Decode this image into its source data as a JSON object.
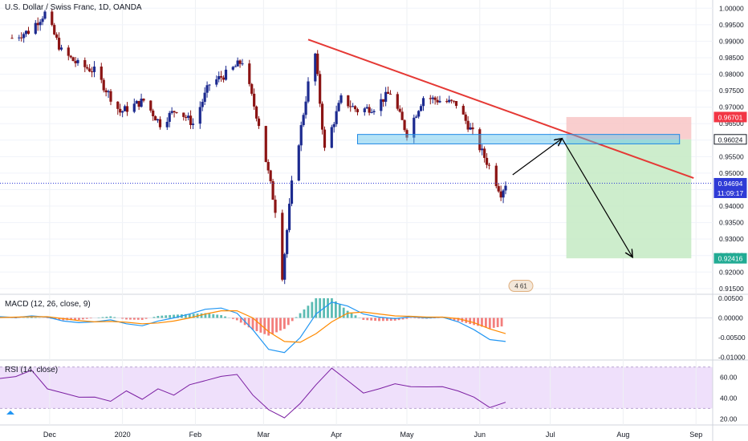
{
  "header": {
    "symbol_title": "U.S. Dollar / Swiss Franc, 1D, OANDA"
  },
  "indicators": {
    "macd_label": "MACD (12, 26, close, 9)",
    "rsi_label": "RSI (14, close)"
  },
  "badge_text": "4 61",
  "colors": {
    "up_candle": "#1c2a8f",
    "down_candle": "#8b1414",
    "trendline": "#e53935",
    "support_zone": "#5bc0eb",
    "stop_zone": "#f8c6c6",
    "target_zone": "#c8ebc6",
    "price_line": "#2f3bd6",
    "macd_line": "#2196f3",
    "signal_line": "#ff8a00",
    "rsi_line": "#7b1fa2",
    "rsi_band": "#efe0fb"
  },
  "chart_data": [
    {
      "type": "candlestick",
      "title": "U.S. Dollar / Swiss Franc, 1D, OANDA",
      "x_ticks": [
        "Dec",
        "2020",
        "Feb",
        "Mar",
        "Apr",
        "May",
        "Jun",
        "Jul",
        "Aug",
        "Sep"
      ],
      "y_ticks": [
        "1.00000",
        "0.99500",
        "0.99000",
        "0.98500",
        "0.98000",
        "0.97500",
        "0.97000",
        "0.96500",
        "0.96000",
        "0.95500",
        "0.95000",
        "0.94500",
        "0.94000",
        "0.93500",
        "0.93000",
        "0.92500",
        "0.92000",
        "0.91500"
      ],
      "ylim": [
        0.9135,
        1.0025
      ],
      "price_tags": [
        {
          "value": 0.96701,
          "label": "0.96701",
          "kind": "stop"
        },
        {
          "value": 0.96024,
          "label": "0.96024",
          "kind": "entry"
        },
        {
          "value": 0.94694,
          "label": "0.94694",
          "kind": "last"
        },
        {
          "value": 0.94544,
          "label": "11:09:17",
          "kind": "countdown"
        },
        {
          "value": 0.92416,
          "label": "0.92416",
          "kind": "target"
        }
      ],
      "approx_close_path": [
        [
          "2019-11-15",
          0.991
        ],
        [
          "2019-11-22",
          0.993
        ],
        [
          "2019-11-29",
          0.9985
        ],
        [
          "2019-12-06",
          0.987
        ],
        [
          "2019-12-13",
          0.983
        ],
        [
          "2019-12-20",
          0.981
        ],
        [
          "2019-12-31",
          0.9685
        ],
        [
          "2020-01-10",
          0.972
        ],
        [
          "2020-01-17",
          0.965
        ],
        [
          "2020-01-24",
          0.9695
        ],
        [
          "2020-01-31",
          0.965
        ],
        [
          "2020-02-07",
          0.977
        ],
        [
          "2020-02-14",
          0.98
        ],
        [
          "2020-02-21",
          0.984
        ],
        [
          "2020-02-28",
          0.965
        ],
        [
          "2020-03-06",
          0.939
        ],
        [
          "2020-03-09",
          0.919
        ],
        [
          "2020-03-13",
          0.9465
        ],
        [
          "2020-03-20",
          0.977
        ],
        [
          "2020-03-23",
          0.986
        ],
        [
          "2020-03-27",
          0.957
        ],
        [
          "2020-04-03",
          0.9725
        ],
        [
          "2020-04-10",
          0.969
        ],
        [
          "2020-04-17",
          0.97
        ],
        [
          "2020-04-24",
          0.9745
        ],
        [
          "2020-05-01",
          0.962
        ],
        [
          "2020-05-08",
          0.973
        ],
        [
          "2020-05-15",
          0.972
        ],
        [
          "2020-05-22",
          0.971
        ],
        [
          "2020-05-29",
          0.962
        ],
        [
          "2020-06-05",
          0.952
        ],
        [
          "2020-06-10",
          0.944
        ],
        [
          "2020-06-12",
          0.9469
        ]
      ],
      "annotations": {
        "trendline": [
          [
            "2020-03-20",
            0.9905
          ],
          [
            "2020-08-31",
            0.9485
          ]
        ],
        "support_zone": {
          "from": "2020-04-10",
          "to": "2020-08-25",
          "low": 0.9596,
          "high": 0.961
        },
        "projection_path": [
          [
            "2020-06-15",
            0.9495
          ],
          [
            "2020-07-06",
            0.9605
          ],
          [
            "2020-08-05",
            0.9245
          ]
        ],
        "position": {
          "entry": 0.96024,
          "stop": 0.96701,
          "target": 0.92416,
          "from": "2020-07-01",
          "to": "2020-08-30"
        }
      }
    },
    {
      "type": "line",
      "title": "MACD (12, 26, close, 9)",
      "y_ticks": [
        "0.00500",
        "0.00000",
        "-0.00500",
        "-0.01000"
      ],
      "ylim": [
        -0.0105,
        0.0058
      ],
      "series": [
        {
          "name": "MACD",
          "values": [
            0.0003,
            0.0001,
            0.0005,
            0.0002,
            -0.0008,
            -0.0012,
            -0.001,
            -0.0005,
            -0.0015,
            -0.002,
            -0.0008,
            0.0,
            0.001,
            0.0022,
            0.0025,
            0.0012,
            -0.003,
            -0.008,
            -0.0088,
            -0.005,
            0.001,
            0.004,
            0.003,
            0.001,
            0.0002,
            -0.0002,
            0.0003,
            0.0,
            0.0002,
            -0.001,
            -0.003,
            -0.0055,
            -0.006
          ]
        },
        {
          "name": "Signal",
          "values": [
            0.0001,
            0.0002,
            0.0003,
            0.0003,
            -0.0002,
            -0.0007,
            -0.001,
            -0.0009,
            -0.0011,
            -0.0015,
            -0.0013,
            -0.0008,
            0.0,
            0.001,
            0.0018,
            0.0018,
            0.0,
            -0.0035,
            -0.006,
            -0.0062,
            -0.004,
            -0.001,
            0.0012,
            0.0015,
            0.001,
            0.0005,
            0.0004,
            0.0002,
            0.0002,
            -0.0002,
            -0.0012,
            -0.0028,
            -0.004
          ]
        },
        {
          "name": "Histogram",
          "values": [
            0.0002,
            -0.0001,
            0.0002,
            -0.0001,
            -0.0006,
            -0.0005,
            0.0,
            0.0004,
            -0.0004,
            -0.0005,
            0.0005,
            0.0008,
            0.001,
            0.0012,
            0.0007,
            -0.0006,
            -0.003,
            -0.0045,
            -0.0028,
            0.0012,
            0.005,
            0.005,
            0.0018,
            -0.0005,
            -0.0008,
            -0.0007,
            -0.0001,
            -0.0002,
            0.0,
            -0.0008,
            -0.0018,
            -0.0027,
            -0.002
          ]
        }
      ]
    },
    {
      "type": "line",
      "title": "RSI (14, close)",
      "y_ticks": [
        "60.00",
        "40.00",
        "20.00"
      ],
      "ylim": [
        14,
        76
      ],
      "band": [
        30,
        70
      ],
      "series": [
        {
          "name": "RSI",
          "values": [
            58,
            62,
            66,
            50,
            44,
            42,
            40,
            38,
            46,
            40,
            48,
            44,
            52,
            58,
            60,
            64,
            42,
            30,
            20,
            36,
            52,
            70,
            56,
            46,
            48,
            55,
            50,
            52,
            50,
            48,
            40,
            32,
            35
          ]
        }
      ]
    }
  ]
}
